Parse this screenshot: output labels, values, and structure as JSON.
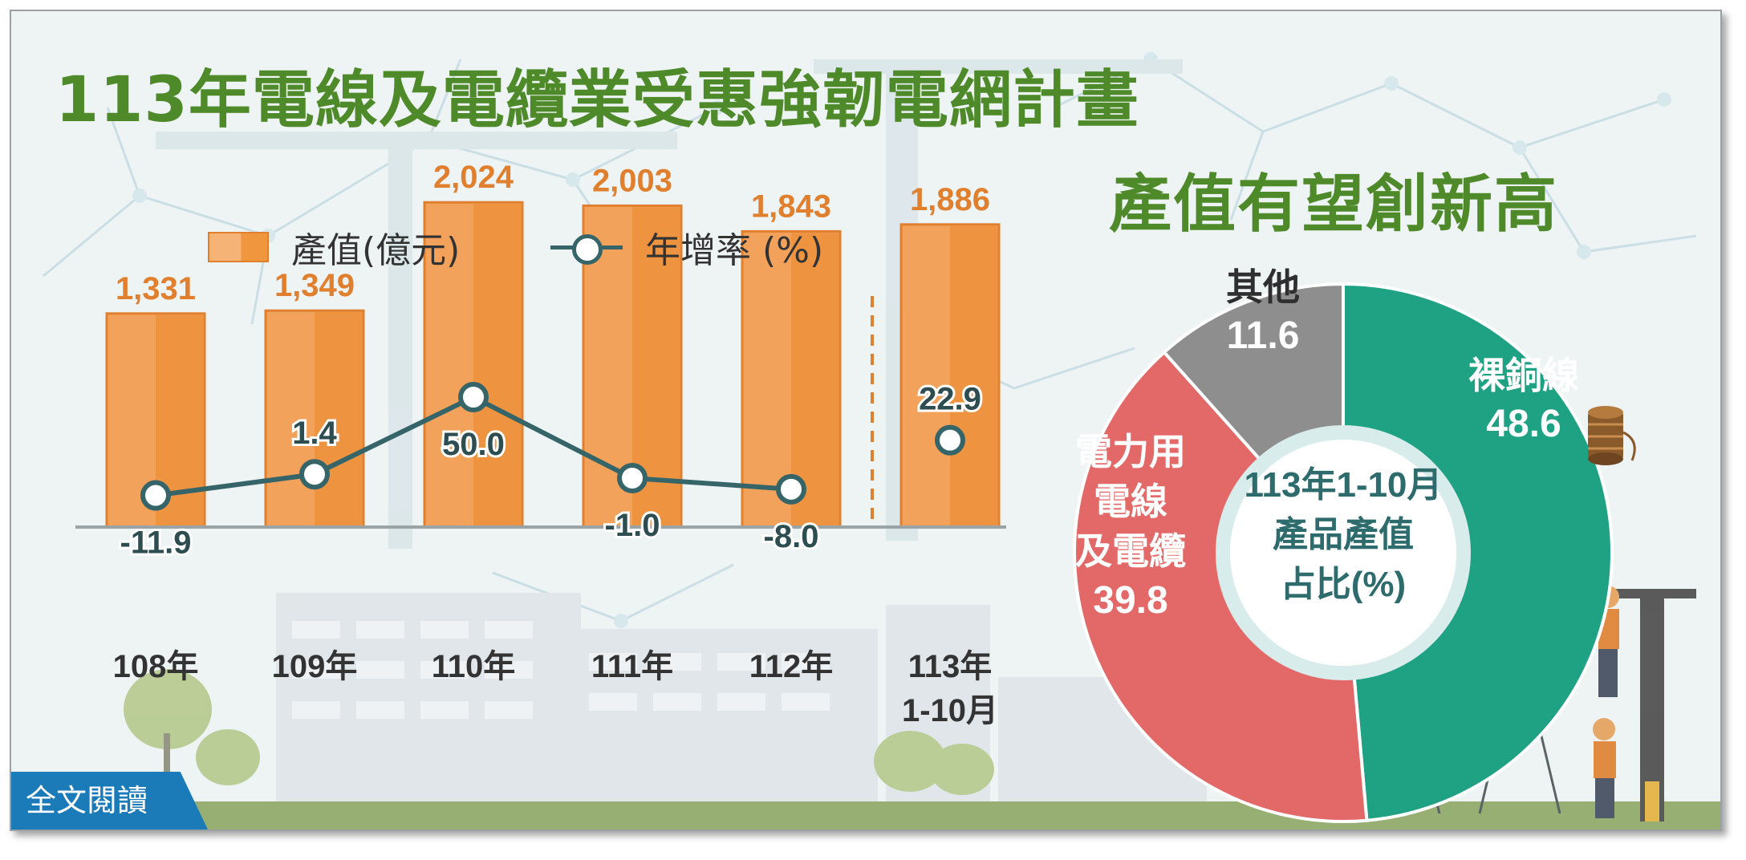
{
  "title": {
    "line1": "113年電線及電纜業受惠強韌電網計畫",
    "line2": "產值有望創新高"
  },
  "legend": {
    "bar_label": "產值(億元)",
    "line_label": "年增率 (%)"
  },
  "footer": {
    "read_more": "全文閱讀"
  },
  "colors": {
    "bar": "#f2a25a",
    "line": "#356569",
    "title": "#4f8a2a",
    "bare_copper": "#1fa184",
    "power_cable": "#e36868",
    "other": "#8e8e8e",
    "badge": "#1b7ab8"
  },
  "chart_data": [
    {
      "type": "bar",
      "categories": [
        "108年",
        "109年",
        "110年",
        "111年",
        "112年",
        "113年 1-10月"
      ],
      "category_lines": [
        [
          "108年"
        ],
        [
          "109年"
        ],
        [
          "110年"
        ],
        [
          "111年"
        ],
        [
          "112年"
        ],
        [
          "113年",
          "1-10月"
        ]
      ],
      "series": [
        {
          "name": "產值(億元)",
          "type": "bar",
          "values": [
            1331,
            1349,
            2024,
            2003,
            1843,
            1886
          ],
          "labels": [
            "1,331",
            "1,349",
            "2,024",
            "2,003",
            "1,843",
            "1,886"
          ]
        },
        {
          "name": "年增率 (%)",
          "type": "line",
          "values": [
            -11.9,
            1.4,
            50.0,
            -1.0,
            -8.0,
            22.9
          ],
          "labels": [
            "-11.9",
            "1.4",
            "50.0",
            "-1.0",
            "-8.0",
            "22.9"
          ],
          "connected": [
            true,
            true,
            true,
            true,
            true,
            false
          ]
        }
      ],
      "legend_position": "top",
      "grid": false
    },
    {
      "type": "pie",
      "center_label": [
        "113年1-10月",
        "產品產值",
        "占比(%)"
      ],
      "slices": [
        {
          "label": "裸銅線",
          "value": 48.6,
          "value_label": "48.6",
          "color": "#1fa184"
        },
        {
          "label": "電力用電線及電纜",
          "label_lines": [
            "電力用",
            "電線",
            "及電纜"
          ],
          "value": 39.8,
          "value_label": "39.8",
          "color": "#e36868"
        },
        {
          "label": "其他",
          "value": 11.6,
          "value_label": "11.6",
          "color": "#8e8e8e"
        }
      ]
    }
  ]
}
